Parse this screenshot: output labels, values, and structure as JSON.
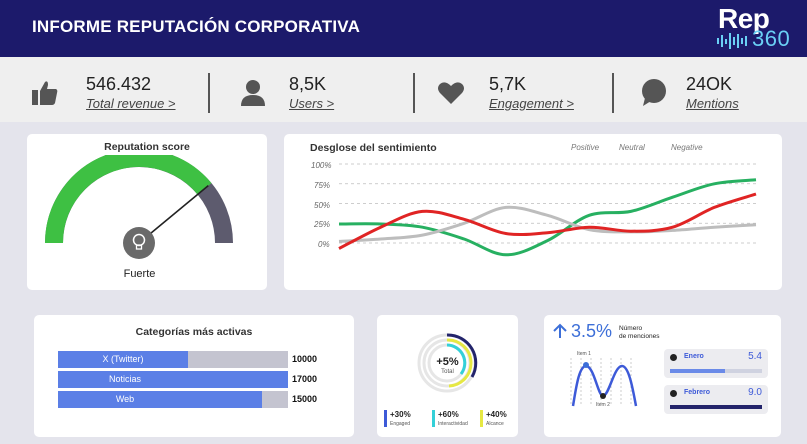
{
  "header": {
    "title": "INFORME REPUTACIÓN CORPORATIVA",
    "logo_top": "Rep",
    "logo_bottom": "360"
  },
  "stats": [
    {
      "icon": "thumbs-up-icon",
      "value": "546.432",
      "link": "Total revenue >"
    },
    {
      "icon": "user-icon",
      "value": "8,5K",
      "link": "Users >"
    },
    {
      "icon": "heart-icon",
      "value": "5,7K",
      "link": "Engagement >"
    },
    {
      "icon": "chat-bubble-icon",
      "value": "24OK",
      "link": "Mentions"
    }
  ],
  "reputation": {
    "title": "Reputation score",
    "label": "Fuerte",
    "score": 0.78,
    "colors": {
      "good": "#3ec043",
      "rest": "#5d5b6e"
    }
  },
  "sentiment": {
    "title": "Desglose del sentimiento",
    "legend": [
      "Positive",
      "Neutral",
      "Negative"
    ],
    "yticks": [
      "100%",
      "75%",
      "50%",
      "25%",
      "0%"
    ]
  },
  "chart_data": {
    "type": "line",
    "title": "Desglose del sentimiento",
    "x": [
      0,
      1,
      2,
      3,
      4,
      5,
      6,
      7,
      8,
      9,
      10
    ],
    "ylim": [
      -25,
      100
    ],
    "series": [
      {
        "name": "Positive",
        "color": "#27b061",
        "values": [
          24,
          24,
          20,
          5,
          -15,
          3,
          35,
          40,
          58,
          75,
          80
        ]
      },
      {
        "name": "Neutral",
        "color": "#bdbdbd",
        "values": [
          2,
          5,
          10,
          25,
          45,
          35,
          17,
          14,
          16,
          20,
          23
        ]
      },
      {
        "name": "Negative",
        "color": "#e02424",
        "values": [
          -7,
          20,
          40,
          30,
          12,
          13,
          20,
          15,
          20,
          45,
          62
        ]
      }
    ]
  },
  "categories": {
    "title": "Categorías más activas",
    "items": [
      {
        "label": "X (Twitter)",
        "value": "10000",
        "fraction": 0.565
      },
      {
        "label": "Noticias",
        "value": "17000",
        "fraction": 1.0
      },
      {
        "label": "Web",
        "value": "15000",
        "fraction": 0.885
      }
    ]
  },
  "engagement": {
    "center_value": "+5%",
    "center_label": "Total",
    "items": [
      {
        "value": "+30%",
        "label": "Engaged",
        "color": "#3d5ad8"
      },
      {
        "value": "+60%",
        "label": "Interactividad",
        "color": "#34d0d8"
      },
      {
        "value": "+40%",
        "label": "Alcance",
        "color": "#e6e843"
      }
    ]
  },
  "mentions": {
    "growth": "3.5%",
    "label_line1": "Número",
    "label_line2": "de menciones",
    "item1": "Item 1",
    "item2": "Item 2",
    "months": [
      {
        "name": "Enero",
        "value": "5.4",
        "fraction": 0.6,
        "color": "#6a8ae8"
      },
      {
        "name": "Febrero",
        "value": "9.0",
        "fraction": 1.0,
        "color": "#23246b"
      }
    ]
  }
}
